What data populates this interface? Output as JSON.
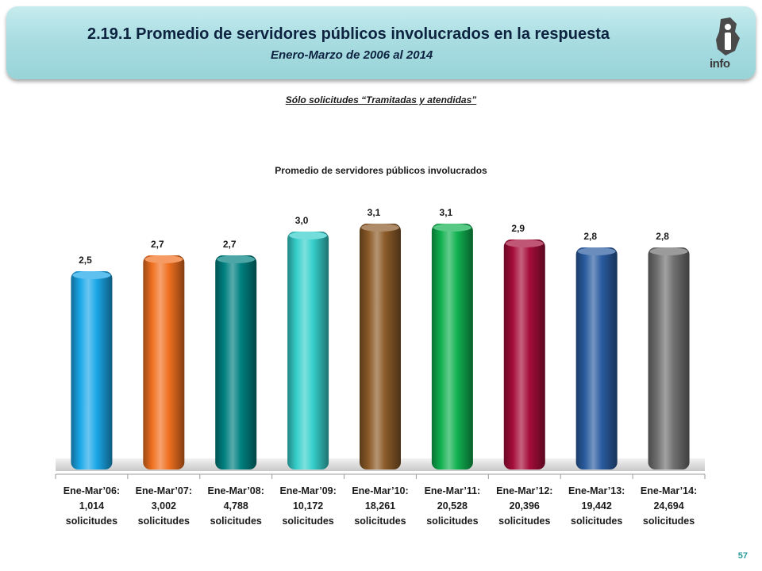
{
  "header": {
    "title": "2.19.1 Promedio de servidores públicos involucrados en la respuesta",
    "subtitle": "Enero-Marzo de 2006 al 2014",
    "logo_text": "info"
  },
  "filter_note": "Sólo solicitudes “Tramitadas y atendidas”",
  "page_number": "57",
  "chart_data": {
    "type": "bar",
    "title": "Promedio de servidores públicos involucrados",
    "xlabel": "",
    "ylabel": "",
    "ylim": [
      0,
      3.4
    ],
    "grid": false,
    "legend": false,
    "categories": [
      [
        "Ene-Mar’06:",
        "1,014",
        "solicitudes"
      ],
      [
        "Ene-Mar’07:",
        "3,002",
        "solicitudes"
      ],
      [
        "Ene-Mar’08:",
        "4,788",
        "solicitudes"
      ],
      [
        "Ene-Mar’09:",
        "10,172",
        "solicitudes"
      ],
      [
        "Ene-Mar’10:",
        "18,261",
        "solicitudes"
      ],
      [
        "Ene-Mar’11:",
        "20,528",
        "solicitudes"
      ],
      [
        "Ene-Mar’12:",
        "20,396",
        "solicitudes"
      ],
      [
        "Ene-Mar’13:",
        "19,442",
        "solicitudes"
      ],
      [
        "Ene-Mar’14:",
        "24,694",
        "solicitudes"
      ]
    ],
    "values": [
      2.5,
      2.7,
      2.7,
      3.0,
      3.1,
      3.1,
      2.9,
      2.8,
      2.8
    ],
    "data_labels": [
      "2,5",
      "2,7",
      "2,7",
      "3,0",
      "3,1",
      "3,1",
      "2,9",
      "2,8",
      "2,8"
    ],
    "colors": [
      "#1aa7e8",
      "#f07020",
      "#008080",
      "#36cfcb",
      "#8b5a28",
      "#10b050",
      "#a50d3a",
      "#2a5ca0",
      "#707070"
    ]
  }
}
